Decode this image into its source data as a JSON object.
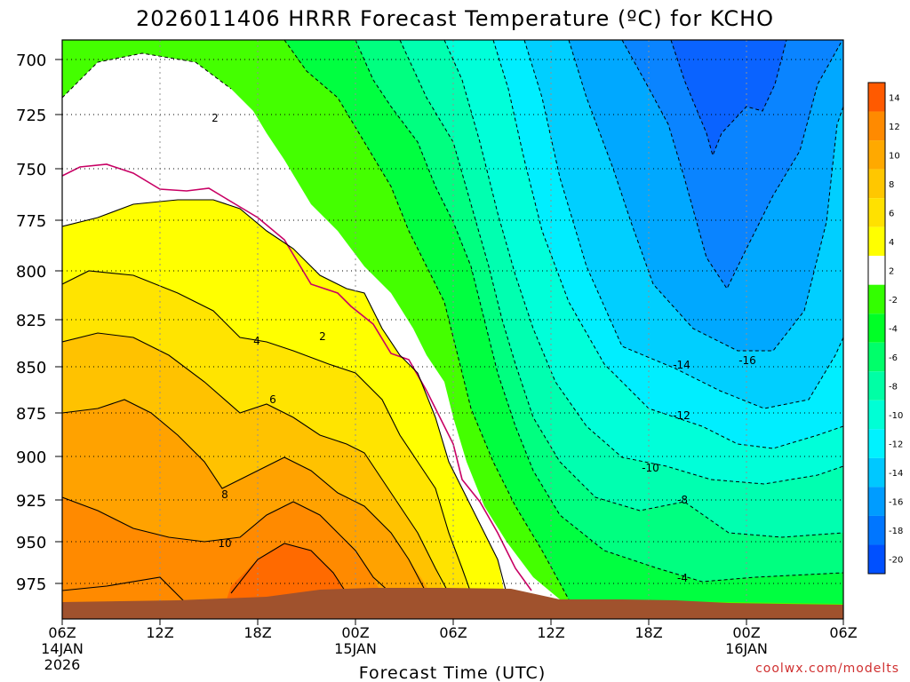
{
  "chart_data": {
    "type": "heatmap",
    "title": "2026011406 HRRR Forecast Temperature (ºC) for KCHO",
    "xlabel": "Forecast Time (UTC)",
    "ylabel": "",
    "credit": "coolwx.com/modelts",
    "y_axis": {
      "reversed": true,
      "ticks": [
        "700",
        "725",
        "750",
        "775",
        "800",
        "825",
        "850",
        "875",
        "900",
        "925",
        "950",
        "975"
      ]
    },
    "x_axis": {
      "ticks": [
        {
          "label": "06Z",
          "sub1": "14JAN",
          "sub2": "2026"
        },
        {
          "label": "12Z",
          "sub1": "",
          "sub2": ""
        },
        {
          "label": "18Z",
          "sub1": "",
          "sub2": ""
        },
        {
          "label": "00Z",
          "sub1": "15JAN",
          "sub2": ""
        },
        {
          "label": "06Z",
          "sub1": "",
          "sub2": ""
        },
        {
          "label": "12Z",
          "sub1": "",
          "sub2": ""
        },
        {
          "label": "18Z",
          "sub1": "",
          "sub2": ""
        },
        {
          "label": "00Z",
          "sub1": "16JAN",
          "sub2": ""
        },
        {
          "label": "06Z",
          "sub1": "",
          "sub2": ""
        }
      ]
    },
    "colorbar": {
      "labels": [
        "14",
        "12",
        "10",
        "8",
        "6",
        "4",
        "2",
        "-2",
        "-4",
        "-6",
        "-8",
        "-10",
        "-12",
        "-14",
        "-16",
        "-18",
        "-20"
      ],
      "colors": [
        "#ff5a00",
        "#ff8a00",
        "#ffa900",
        "#ffc700",
        "#ffe100",
        "#ffff00",
        "#ffffff",
        "#33ff00",
        "#00ff26",
        "#00ff6a",
        "#00ffa5",
        "#00ffd5",
        "#00f2ff",
        "#00c8ff",
        "#009cff",
        "#0076ff",
        "#0050ff"
      ]
    },
    "contour_labels": [
      {
        "value": "2",
        "text": "2"
      },
      {
        "value": "2",
        "text": "2"
      },
      {
        "value": "4",
        "text": "4"
      },
      {
        "value": "6",
        "text": "6"
      },
      {
        "value": "8",
        "text": "8"
      },
      {
        "value": "10",
        "text": "10"
      },
      {
        "value": "-4",
        "text": "-4"
      },
      {
        "value": "-8",
        "text": "-8"
      },
      {
        "value": "-10",
        "text": "-10"
      },
      {
        "value": "-12",
        "text": "-12"
      },
      {
        "value": "-14",
        "text": "-14"
      },
      {
        "value": "-16",
        "text": "-16"
      }
    ]
  }
}
